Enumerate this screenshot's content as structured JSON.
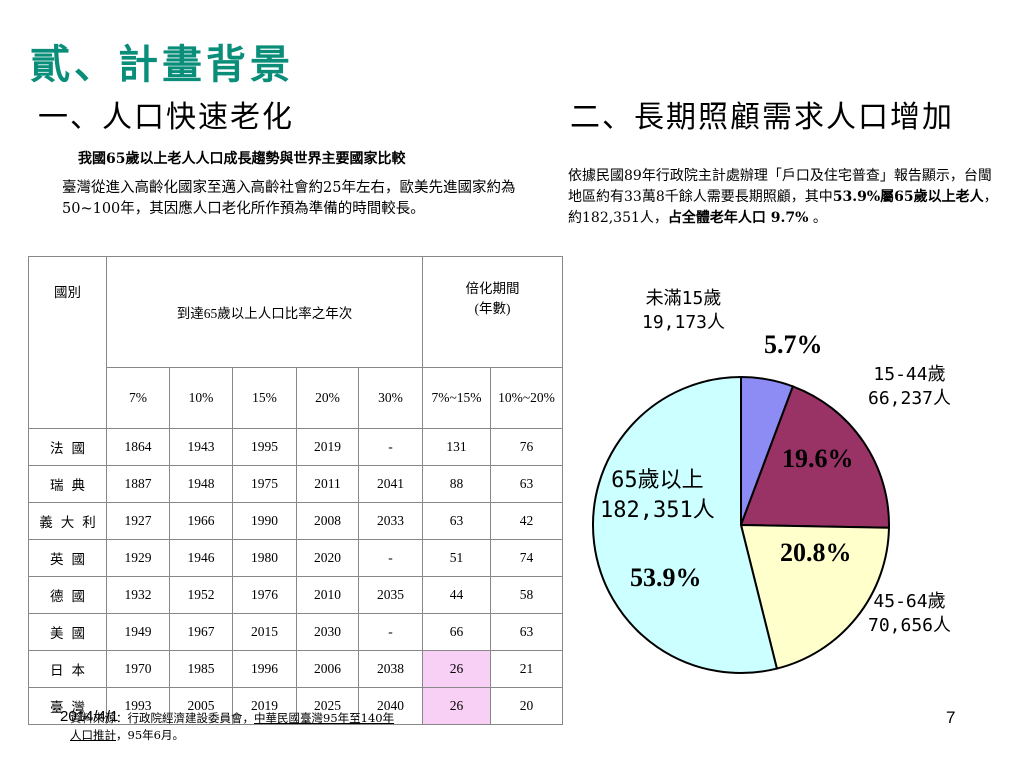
{
  "slide": {
    "title": "貳、計畫背景",
    "left_heading": "一、人口快速老化",
    "right_heading": "二、長期照顧需求人口增加",
    "table_caption": "我國65歲以上老人人口成長趨勢與世界主要國家比較",
    "left_paragraph": "臺灣從進入高齡化國家至邁入高齡社會約25年左右，歐美先進國家約為50~100年，其因應人口老化所作預為準備的時間較長。",
    "right_paragraph": {
      "part1": "依據民國89年行政院主計處辦理「戶口及住宅普查」報告顯示，台閩地區約有33萬8千餘人需要長期照顧，其中",
      "part2": "53.9%屬65歲以上老人",
      "part3": "，約182,351人，",
      "part4": "占全體老年人口 9.7%",
      "part5": " 。"
    }
  },
  "table": {
    "header_country": "國別",
    "header_years": "到達65歲以上人口比率之年次",
    "header_period_line1": "倍化期間",
    "header_period_line2": "(年數)",
    "sub_headers": [
      "7%",
      "10%",
      "15%",
      "20%",
      "30%",
      "7%~15%",
      "10%~20%"
    ],
    "rows": [
      {
        "country": "法國",
        "values": [
          "1864",
          "1943",
          "1995",
          "2019",
          "-",
          "131",
          "76"
        ]
      },
      {
        "country": "瑞典",
        "values": [
          "1887",
          "1948",
          "1975",
          "2011",
          "2041",
          "88",
          "63"
        ]
      },
      {
        "country": "義大利",
        "values": [
          "1927",
          "1966",
          "1990",
          "2008",
          "2033",
          "63",
          "42"
        ]
      },
      {
        "country": "英國",
        "values": [
          "1929",
          "1946",
          "1980",
          "2020",
          "-",
          "51",
          "74"
        ]
      },
      {
        "country": "德國",
        "values": [
          "1932",
          "1952",
          "1976",
          "2010",
          "2035",
          "44",
          "58"
        ]
      },
      {
        "country": "美國",
        "values": [
          "1949",
          "1967",
          "2015",
          "2030",
          "-",
          "66",
          "63"
        ]
      },
      {
        "country": "日本",
        "values": [
          "1970",
          "1985",
          "1996",
          "2006",
          "2038",
          "26",
          "21"
        ]
      },
      {
        "country": "臺灣",
        "values": [
          "1993",
          "2005",
          "2019",
          "2025",
          "2040",
          "26",
          "20"
        ]
      }
    ]
  },
  "chart_data": {
    "type": "pie",
    "slices": [
      {
        "label_line1": "未滿15歲",
        "label_line2": "19,173人",
        "percent_label": "5.7%",
        "value": 5.7,
        "color": "#8c8cf4"
      },
      {
        "label_line1": "15-44歲",
        "label_line2": "66,237人",
        "percent_label": "19.6%",
        "value": 19.6,
        "color": "#993366"
      },
      {
        "label_line1": "45-64歲",
        "label_line2": "70,656人",
        "percent_label": "20.8%",
        "value": 20.8,
        "color": "#ffffcc"
      },
      {
        "label_line1": "65歲以上",
        "label_line2": "182,351人",
        "percent_label": "53.9%",
        "value": 53.9,
        "color": "#ccffff"
      }
    ]
  },
  "footer": {
    "date": "2014/4/1",
    "source_prefix": "資料來源：行政院經濟建設委員會，",
    "source_link1": "中華民國臺灣95年至140年",
    "source_link2": "人口推計",
    "source_suffix": "，95年6月。",
    "page_number": "7"
  },
  "colors": {
    "title": "#0a8e7a",
    "highlight_cell": "#f9d0f5"
  }
}
